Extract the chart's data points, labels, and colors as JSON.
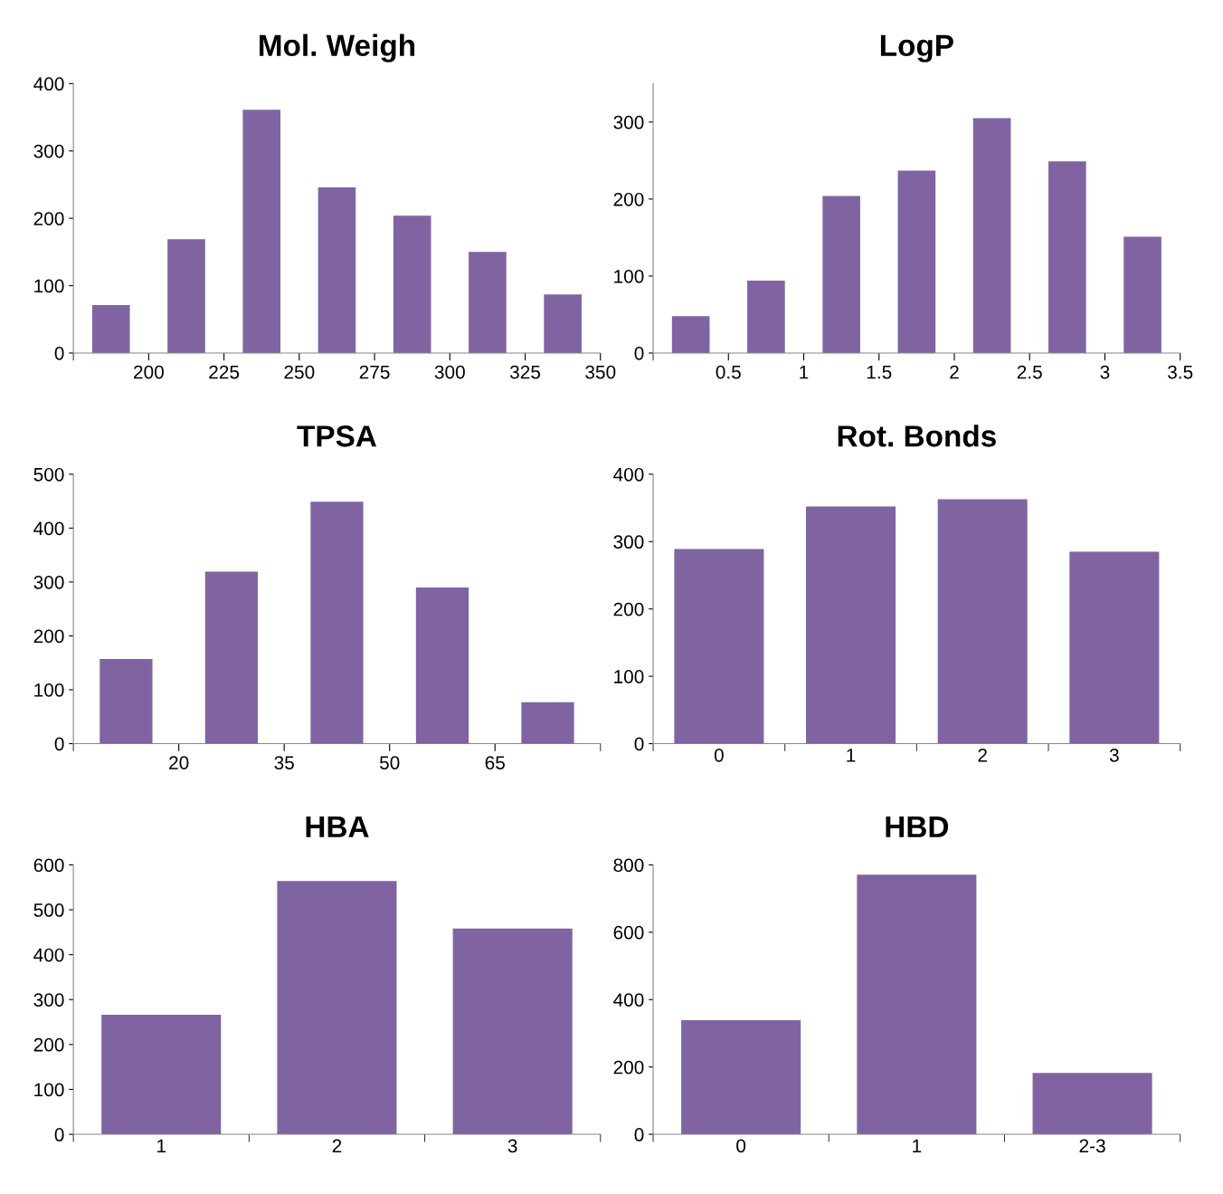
{
  "chart_data": [
    {
      "type": "histogram",
      "title": "Mol. Weigh",
      "bins": [
        175,
        200,
        225,
        250,
        275,
        300,
        325,
        350
      ],
      "values": [
        71,
        169,
        361,
        246,
        204,
        150,
        87
      ],
      "color": "#8064a2",
      "xlim": [
        175,
        350
      ],
      "xticks": [
        200,
        225,
        250,
        275,
        300,
        325,
        350
      ],
      "ylim": [
        0,
        400
      ],
      "yticks": [
        0,
        100,
        200,
        300,
        400
      ],
      "grid": false,
      "legend": false
    },
    {
      "type": "histogram",
      "title": "LogP",
      "bins": [
        0,
        0.5,
        1,
        1.5,
        2,
        2.5,
        3,
        3.5
      ],
      "values": [
        48,
        94,
        204,
        237,
        305,
        249,
        151
      ],
      "color": "#8064a2",
      "xlim": [
        0,
        3.5
      ],
      "xticks": [
        0.5,
        1,
        1.5,
        2,
        2.5,
        3,
        3.5
      ],
      "ylim": [
        0,
        350
      ],
      "yticks": [
        0,
        100,
        200,
        300
      ],
      "grid": false,
      "legend": false
    },
    {
      "type": "histogram",
      "title": "TPSA",
      "bins": [
        5,
        20,
        35,
        50,
        65,
        80
      ],
      "values": [
        157,
        319,
        449,
        290,
        77
      ],
      "color": "#8064a2",
      "xlim": [
        5,
        80
      ],
      "xticks": [
        20,
        35,
        50,
        65
      ],
      "ylim": [
        0,
        500
      ],
      "yticks": [
        0,
        100,
        200,
        300,
        400,
        500
      ],
      "grid": false,
      "legend": false
    },
    {
      "type": "bar",
      "title": "Rot. Bonds",
      "categories": [
        "0",
        "1",
        "2",
        "3"
      ],
      "values": [
        289,
        352,
        363,
        285
      ],
      "color": "#8064a2",
      "ylim": [
        0,
        400
      ],
      "yticks": [
        0,
        100,
        200,
        300,
        400
      ],
      "grid": false,
      "legend": false
    },
    {
      "type": "bar",
      "title": "HBA",
      "categories": [
        "1",
        "2",
        "3"
      ],
      "values": [
        266,
        564,
        458
      ],
      "color": "#8064a2",
      "ylim": [
        0,
        600
      ],
      "yticks": [
        0,
        100,
        200,
        300,
        400,
        500,
        600
      ],
      "grid": false,
      "legend": false
    },
    {
      "type": "bar",
      "title": "HBD",
      "categories": [
        "0",
        "1",
        "2-3"
      ],
      "values": [
        339,
        771,
        182
      ],
      "color": "#8064a2",
      "ylim": [
        0,
        800
      ],
      "yticks": [
        0,
        200,
        400,
        600,
        800
      ],
      "grid": false,
      "legend": false
    }
  ]
}
